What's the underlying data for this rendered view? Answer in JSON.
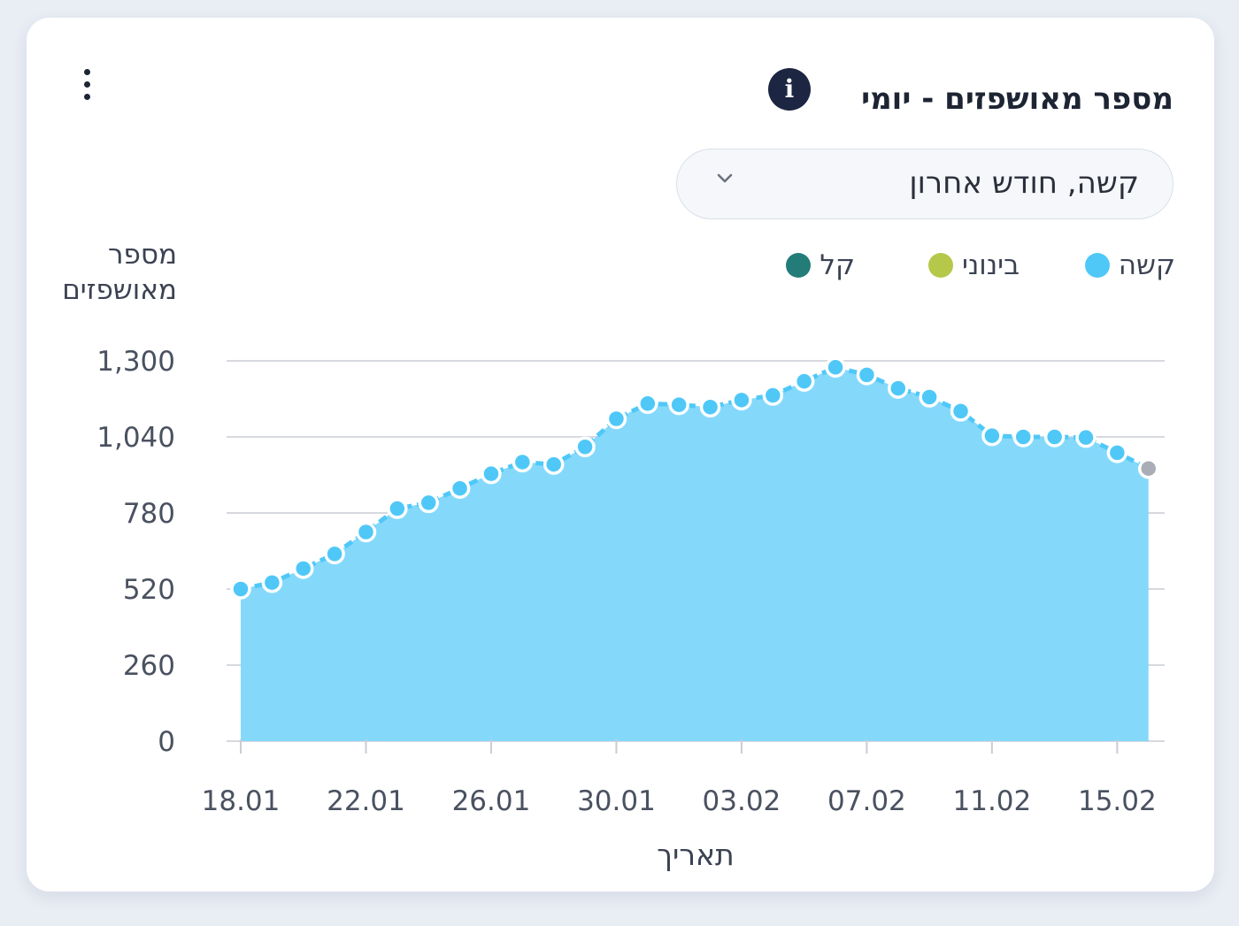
{
  "widget": {
    "title": "מספר מאושפזים - יומי",
    "info_icon": "info-icon",
    "menu_icon": "kebab-menu-icon"
  },
  "filter": {
    "selected": "קשה, חודש אחרון",
    "chevron_icon": "chevron-down-icon"
  },
  "legend": [
    {
      "label": "קשה",
      "color": "#4fc8f8"
    },
    {
      "label": "בינוני",
      "color": "#b6c84a"
    },
    {
      "label": "קל",
      "color": "#237c78"
    }
  ],
  "chart_data": {
    "type": "area",
    "ylabel": "מספר מאושפזים",
    "xlabel": "תאריך",
    "ylim": [
      0,
      1300
    ],
    "yticks": [
      0,
      260,
      520,
      780,
      1040,
      1300
    ],
    "ytick_labels": [
      "0",
      "260",
      "520",
      "780",
      "1,040",
      "1,300"
    ],
    "x": [
      "18.01",
      "19.01",
      "20.01",
      "21.01",
      "22.01",
      "23.01",
      "24.01",
      "25.01",
      "26.01",
      "27.01",
      "28.01",
      "29.01",
      "30.01",
      "31.01",
      "01.02",
      "02.02",
      "03.02",
      "04.02",
      "05.02",
      "06.02",
      "07.02",
      "08.02",
      "09.02",
      "10.02",
      "11.02",
      "12.02",
      "13.02",
      "14.02",
      "15.02",
      "16.02"
    ],
    "xtick_labels": [
      "18.01",
      "22.01",
      "26.01",
      "30.01",
      "03.02",
      "07.02",
      "11.02",
      "15.02"
    ],
    "series": [
      {
        "name": "קשה",
        "color": "#4fc8f8",
        "fill": "#84d9fb",
        "values": [
          520,
          542,
          590,
          640,
          715,
          795,
          815,
          864,
          914,
          954,
          946,
          1006,
          1102,
          1154,
          1150,
          1142,
          1166,
          1182,
          1230,
          1278,
          1252,
          1206,
          1176,
          1128,
          1044,
          1040,
          1040,
          1038,
          986,
          932
        ],
        "last_point_color": "#a9adb5"
      }
    ],
    "grid": true
  }
}
